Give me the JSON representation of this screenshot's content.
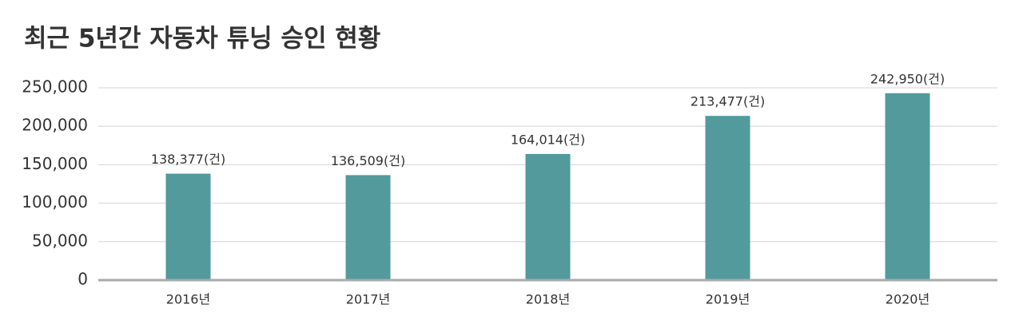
{
  "chart_data": {
    "type": "bar",
    "title": "최근 5년간 자동차 튜닝 승인 현황",
    "categories": [
      "2016년",
      "2017년",
      "2018년",
      "2019년",
      "2020년"
    ],
    "values": [
      138377,
      136509,
      164014,
      213477,
      242950
    ],
    "value_labels": [
      "138,377(건)",
      "136,509(건)",
      "164,014(건)",
      "213,477(건)",
      "242,950(건)"
    ],
    "color": "#529a9c",
    "ylim": [
      0,
      250000
    ],
    "yticks": [
      0,
      {
        "value": 50000,
        "label": "50,000"
      },
      {
        "value": 100000,
        "label": "100,000"
      },
      {
        "value": 150000,
        "label": "150,000"
      },
      {
        "value": 200000,
        "label": "200,000"
      },
      {
        "value": 250000,
        "label": "250,000"
      }
    ],
    "grid": true
  }
}
